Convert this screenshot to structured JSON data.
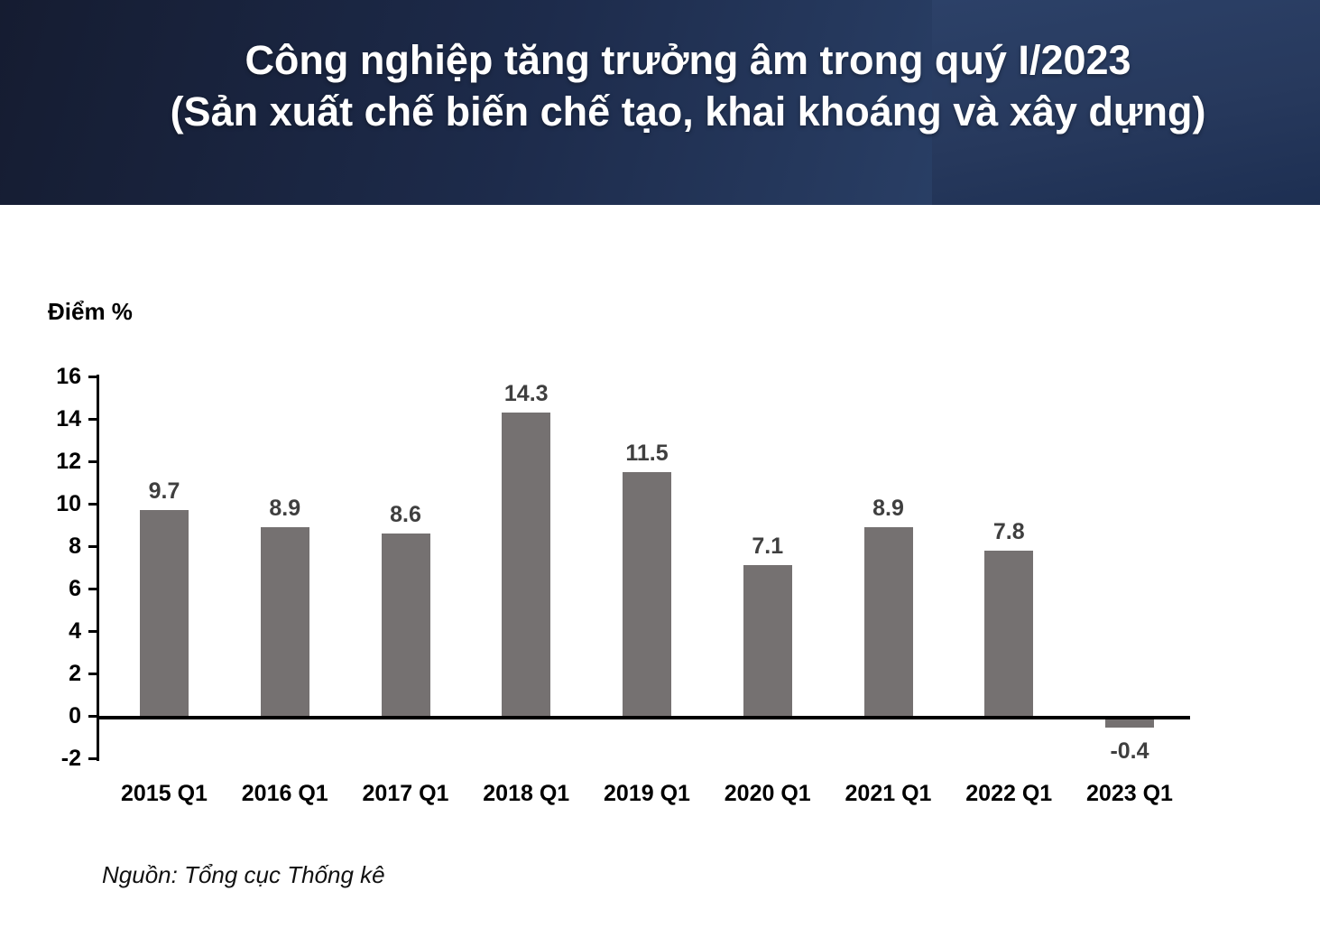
{
  "title": {
    "line1": "Công nghiệp tăng trưởng âm trong quý I/2023",
    "line2": "(Sản xuất chế biến chế tạo, khai khoáng và xây dựng)"
  },
  "chart_data": {
    "type": "bar",
    "categories": [
      "2015 Q1",
      "2016 Q1",
      "2017 Q1",
      "2018 Q1",
      "2019 Q1",
      "2020 Q1",
      "2021 Q1",
      "2022 Q1",
      "2023 Q1"
    ],
    "values": [
      9.7,
      8.9,
      8.6,
      14.3,
      11.5,
      7.1,
      8.9,
      7.8,
      -0.4
    ],
    "title": "",
    "xlabel": "",
    "ylabel": "Điểm %",
    "ylim": [
      -2,
      16
    ],
    "ytick_step": 2,
    "yticks": [
      16,
      14,
      12,
      10,
      8,
      6,
      4,
      2,
      0,
      -2
    ],
    "grid": false,
    "legend_position": "none",
    "data_labels": true
  },
  "source": "Nguồn: Tổng cục Thống kê",
  "colors": {
    "bar": "#757171",
    "value_label": "#3f3f3f",
    "axis": "#000000",
    "banner_dark": "#151c31",
    "banner_light": "#30497a",
    "title_text": "#ffffff"
  }
}
